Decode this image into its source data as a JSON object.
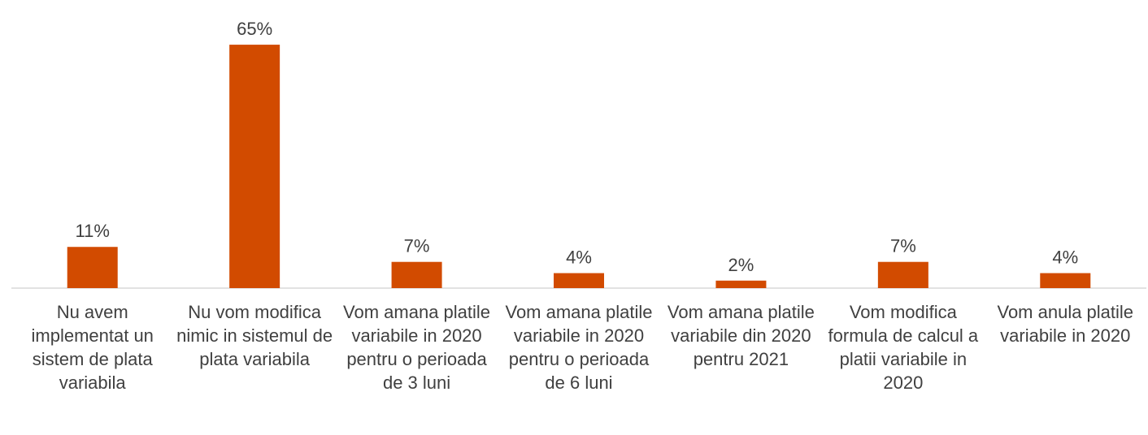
{
  "chart_data": {
    "type": "bar",
    "categories": [
      "Nu avem implementat un sistem de plata variabila",
      "Nu vom modifica nimic in sistemul de plata variabila",
      "Vom amana platile variabile in 2020 pentru o perioada de 3 luni",
      "Vom amana platile variabile in 2020 pentru o perioada de 6 luni",
      "Vom amana platile variabile din 2020 pentru 2021",
      "Vom modifica formula de calcul a platii variabile in 2020",
      "Vom anula platile variabile in 2020"
    ],
    "values": [
      11,
      65,
      7,
      4,
      2,
      7,
      4
    ],
    "value_labels": [
      "11%",
      "65%",
      "7%",
      "4%",
      "2%",
      "7%",
      "4%"
    ],
    "color": "#d24b00",
    "ylim": [
      0,
      70
    ]
  }
}
